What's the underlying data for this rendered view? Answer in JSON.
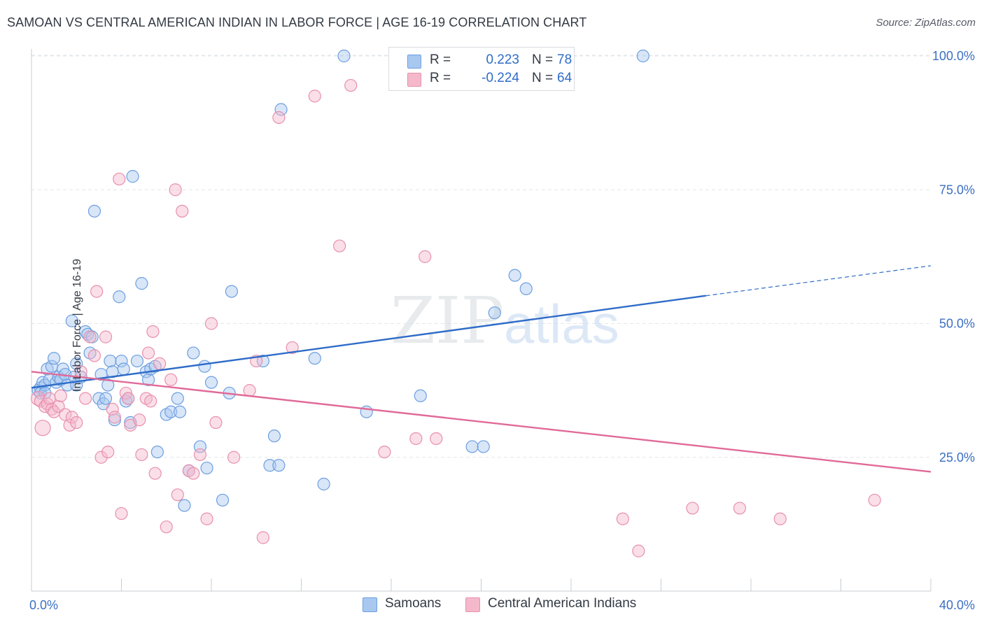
{
  "title": "SAMOAN VS CENTRAL AMERICAN INDIAN IN LABOR FORCE | AGE 16-19 CORRELATION CHART",
  "source": "Source: ZipAtlas.com",
  "watermark": {
    "zip": "ZIP",
    "atlas": "atlas"
  },
  "stats": [
    {
      "r_label": "R =",
      "r_value": "0.223",
      "n_label": "N =",
      "n_value": "78"
    },
    {
      "r_label": "R =",
      "r_value": "-0.224",
      "n_label": "N =",
      "n_value": "64"
    }
  ],
  "colors": {
    "samoans_fill": "#a8c8f0",
    "samoans_stroke": "#6d9fe0",
    "samoans_line": "#2f6cc8",
    "cai_fill": "#f5b8cb",
    "cai_stroke": "#e890ad",
    "cai_line": "#e06a98",
    "tick_text": "#3b6fc4",
    "grid": "#e3e6ea"
  },
  "chart_data": {
    "type": "scatter",
    "title": "SAMOAN VS CENTRAL AMERICAN INDIAN IN LABOR FORCE | AGE 16-19 CORRELATION CHART",
    "xlabel": "",
    "ylabel": "In Labor Force | Age 16-19",
    "xlim": [
      0,
      40
    ],
    "ylim": [
      0,
      102
    ],
    "x_tick_labels": [
      {
        "value": 0,
        "label": "0.0%"
      },
      {
        "value": 40,
        "label": "40.0%"
      }
    ],
    "y_tick_labels": [
      {
        "value": 25,
        "label": "25.0%"
      },
      {
        "value": 50,
        "label": "50.0%"
      },
      {
        "value": 75,
        "label": "75.0%"
      },
      {
        "value": 100,
        "label": "100.0%"
      }
    ],
    "grid": true,
    "legend_position": "bottom",
    "series": [
      {
        "name": "Samoans",
        "trend": {
          "x0": 0,
          "y0": 38.0,
          "x1": 30.0,
          "y1": 55.2,
          "dash_to_x": 40,
          "dash_to_y": 60.8
        },
        "points": [
          [
            0.3,
            37.5
          ],
          [
            0.4,
            38.0
          ],
          [
            0.4,
            37.0
          ],
          [
            0.5,
            39.0
          ],
          [
            0.6,
            38.5
          ],
          [
            0.7,
            41.5
          ],
          [
            0.8,
            39.5
          ],
          [
            0.9,
            42.0
          ],
          [
            1.0,
            43.5
          ],
          [
            1.1,
            39.0
          ],
          [
            1.2,
            40.0
          ],
          [
            1.3,
            39.5
          ],
          [
            1.4,
            41.5
          ],
          [
            1.5,
            40.5
          ],
          [
            1.6,
            38.5
          ],
          [
            1.8,
            50.5
          ],
          [
            1.9,
            40.0
          ],
          [
            2.0,
            38.5
          ],
          [
            2.0,
            42.5
          ],
          [
            2.2,
            40.0
          ],
          [
            2.4,
            48.5
          ],
          [
            2.5,
            48.0
          ],
          [
            2.6,
            44.5
          ],
          [
            2.7,
            47.5
          ],
          [
            2.8,
            71.0
          ],
          [
            3.0,
            36.0
          ],
          [
            3.1,
            40.5
          ],
          [
            3.2,
            35.0
          ],
          [
            3.3,
            36.0
          ],
          [
            3.4,
            38.5
          ],
          [
            3.5,
            43.0
          ],
          [
            3.6,
            41.0
          ],
          [
            3.7,
            32.0
          ],
          [
            3.9,
            55.0
          ],
          [
            4.0,
            43.0
          ],
          [
            4.1,
            41.5
          ],
          [
            4.2,
            35.5
          ],
          [
            4.3,
            36.0
          ],
          [
            4.4,
            31.5
          ],
          [
            4.5,
            77.5
          ],
          [
            4.7,
            43.0
          ],
          [
            4.9,
            57.5
          ],
          [
            5.1,
            41.0
          ],
          [
            5.2,
            39.5
          ],
          [
            5.3,
            41.5
          ],
          [
            5.5,
            42.0
          ],
          [
            5.6,
            26.0
          ],
          [
            6.0,
            33.0
          ],
          [
            6.2,
            33.5
          ],
          [
            6.5,
            36.0
          ],
          [
            6.6,
            33.5
          ],
          [
            6.8,
            16.0
          ],
          [
            7.0,
            22.5
          ],
          [
            7.2,
            44.5
          ],
          [
            7.5,
            27.0
          ],
          [
            7.7,
            42.0
          ],
          [
            7.8,
            23.0
          ],
          [
            8.0,
            39.0
          ],
          [
            8.5,
            17.0
          ],
          [
            8.8,
            37.0
          ],
          [
            8.9,
            56.0
          ],
          [
            10.3,
            43.0
          ],
          [
            10.6,
            23.5
          ],
          [
            10.8,
            29.0
          ],
          [
            11.0,
            23.5
          ],
          [
            11.1,
            90.0
          ],
          [
            12.6,
            43.5
          ],
          [
            13.0,
            20.0
          ],
          [
            13.9,
            100.0
          ],
          [
            14.9,
            33.5
          ],
          [
            17.3,
            36.5
          ],
          [
            19.6,
            27.0
          ],
          [
            20.1,
            27.0
          ],
          [
            20.6,
            52.0
          ],
          [
            21.5,
            59.0
          ],
          [
            22.0,
            56.5
          ],
          [
            27.2,
            100.0
          ],
          [
            0.6,
            37.0
          ]
        ]
      },
      {
        "name": "Central American Indians",
        "trend": {
          "x0": 0,
          "y0": 41.0,
          "x1": 40,
          "y1": 22.3
        },
        "points": [
          [
            0.3,
            36.0
          ],
          [
            0.4,
            35.5
          ],
          [
            0.5,
            30.5
          ],
          [
            0.6,
            34.5
          ],
          [
            0.7,
            35.0
          ],
          [
            0.8,
            36.0
          ],
          [
            0.9,
            34.0
          ],
          [
            1.0,
            33.5
          ],
          [
            1.2,
            34.5
          ],
          [
            1.3,
            36.5
          ],
          [
            1.5,
            33.0
          ],
          [
            1.7,
            31.0
          ],
          [
            1.8,
            32.5
          ],
          [
            2.0,
            31.5
          ],
          [
            2.2,
            41.0
          ],
          [
            2.4,
            36.0
          ],
          [
            2.6,
            47.5
          ],
          [
            2.8,
            44.0
          ],
          [
            2.9,
            56.0
          ],
          [
            3.1,
            25.0
          ],
          [
            3.3,
            47.5
          ],
          [
            3.4,
            26.0
          ],
          [
            3.6,
            34.0
          ],
          [
            3.7,
            32.5
          ],
          [
            3.9,
            77.0
          ],
          [
            4.0,
            14.5
          ],
          [
            4.2,
            37.0
          ],
          [
            4.3,
            36.0
          ],
          [
            4.4,
            31.0
          ],
          [
            4.8,
            32.0
          ],
          [
            4.9,
            25.5
          ],
          [
            5.1,
            36.0
          ],
          [
            5.2,
            44.5
          ],
          [
            5.3,
            35.5
          ],
          [
            5.4,
            48.5
          ],
          [
            5.5,
            22.0
          ],
          [
            5.7,
            42.5
          ],
          [
            6.0,
            12.0
          ],
          [
            6.2,
            39.5
          ],
          [
            6.4,
            75.0
          ],
          [
            6.5,
            18.0
          ],
          [
            6.7,
            71.0
          ],
          [
            7.0,
            22.5
          ],
          [
            7.2,
            22.0
          ],
          [
            7.5,
            25.5
          ],
          [
            7.8,
            13.5
          ],
          [
            8.0,
            50.0
          ],
          [
            8.2,
            31.5
          ],
          [
            9.0,
            25.0
          ],
          [
            9.7,
            37.5
          ],
          [
            10.0,
            43.0
          ],
          [
            10.3,
            10.0
          ],
          [
            11.0,
            88.5
          ],
          [
            11.6,
            45.5
          ],
          [
            12.6,
            92.5
          ],
          [
            13.7,
            64.5
          ],
          [
            14.2,
            94.5
          ],
          [
            15.7,
            26.0
          ],
          [
            17.1,
            28.5
          ],
          [
            17.5,
            62.5
          ],
          [
            18.0,
            28.5
          ],
          [
            26.3,
            13.5
          ],
          [
            27.0,
            7.5
          ],
          [
            29.4,
            15.5
          ],
          [
            31.5,
            15.5
          ],
          [
            33.3,
            13.5
          ],
          [
            37.5,
            17.0
          ]
        ]
      }
    ]
  },
  "legend": [
    {
      "label": "Samoans"
    },
    {
      "label": "Central American Indians"
    }
  ]
}
